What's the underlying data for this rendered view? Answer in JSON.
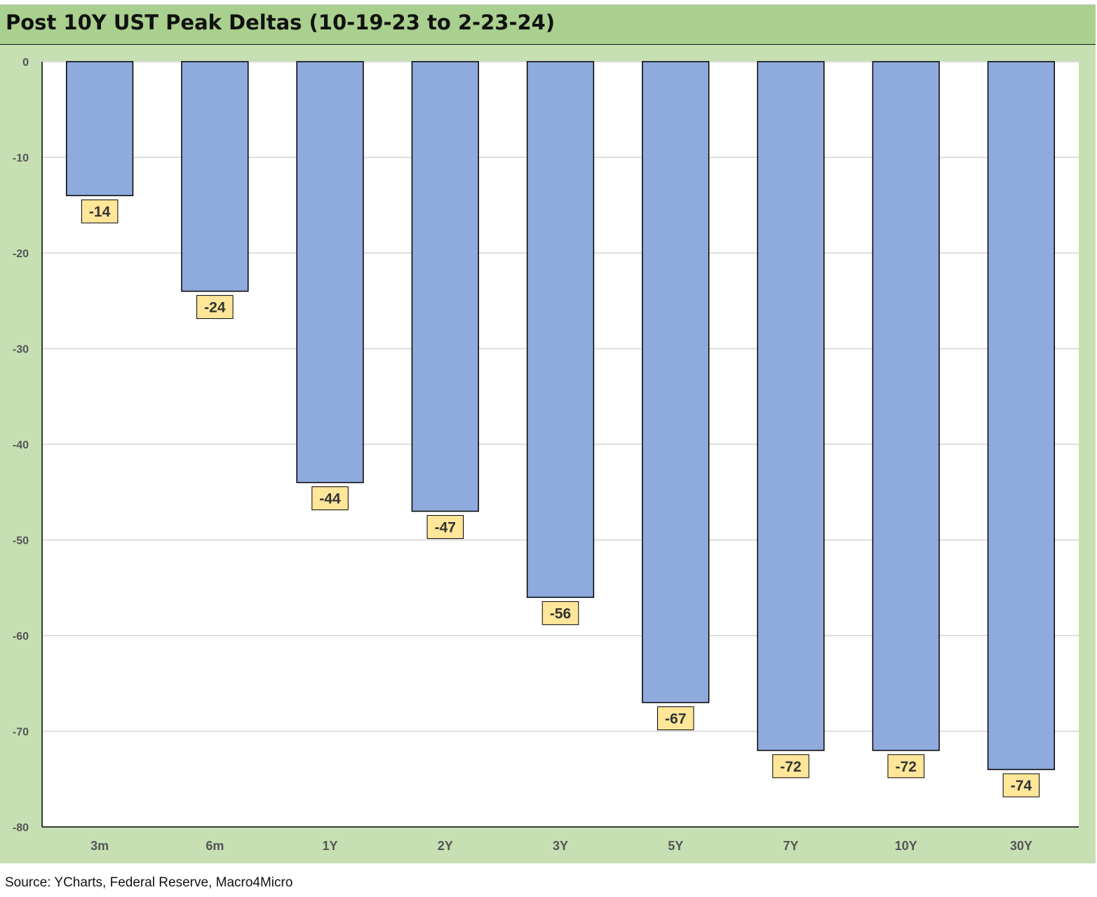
{
  "title": "Post 10Y UST Peak Deltas (10-19-23 to 2-23-24)",
  "source": "Source: YCharts, Federal Reserve, Macro4Micro",
  "colors": {
    "title_bar": "#a9d08e",
    "chart_background": "#c6e0b4",
    "plot_background": "#ffffff",
    "bar_fill": "#8faadc",
    "bar_stroke": "#000000",
    "data_label_fill": "#ffe699"
  },
  "chart_data": {
    "type": "bar",
    "title": "Post 10Y UST Peak Deltas (10-19-23 to 2-23-24)",
    "xlabel": "",
    "ylabel": "",
    "categories": [
      "3m",
      "6m",
      "1Y",
      "2Y",
      "3Y",
      "5Y",
      "7Y",
      "10Y",
      "30Y"
    ],
    "values": [
      -14,
      -24,
      -44,
      -47,
      -56,
      -67,
      -72,
      -72,
      -74
    ],
    "data_labels": [
      "-14",
      "-24",
      "-44",
      "-47",
      "-56",
      "-67",
      "-72",
      "-72",
      "-74"
    ],
    "ylim": [
      -80,
      0
    ],
    "yticks": [
      0,
      -10,
      -20,
      -30,
      -40,
      -50,
      -60,
      -70,
      -80
    ],
    "ytick_labels": [
      "0",
      "-10",
      "-20",
      "-30",
      "-40",
      "-50",
      "-60",
      "-70",
      "-80"
    ],
    "grid": true,
    "legend": "none"
  }
}
